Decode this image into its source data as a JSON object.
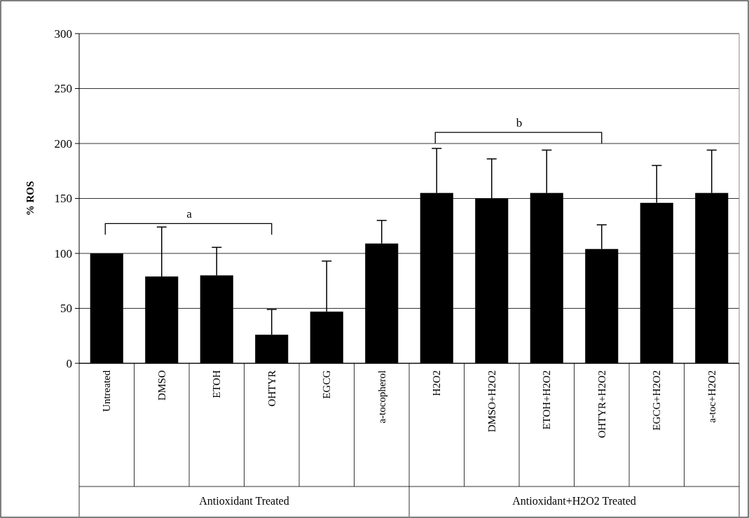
{
  "chart_data": {
    "type": "bar",
    "ylabel": "% ROS",
    "categories": [
      "Untreated",
      "DMSO",
      "ETOH",
      "OHTYR",
      "EGCG",
      "a-tocopherol",
      "H2O2",
      "DMSO+H2O2",
      "ETOH+H2O2",
      "OHTYR+H2O2",
      "EGCG+H2O2",
      "a-toc+H2O2"
    ],
    "values": [
      100,
      79,
      80,
      26,
      47,
      109,
      155,
      150,
      155,
      104,
      146,
      155
    ],
    "errors": [
      null,
      45,
      25.5,
      23,
      46,
      21,
      40.5,
      36,
      39,
      22,
      34,
      39
    ],
    "color": "#000000",
    "ylim": [
      0,
      300
    ],
    "yticks": [
      0,
      50,
      100,
      150,
      200,
      250,
      300
    ],
    "grid": "y",
    "annotations": [
      "a",
      "b",
      "Antioxidant Treated",
      "Antioxidant+H2O2 Treated"
    ]
  }
}
